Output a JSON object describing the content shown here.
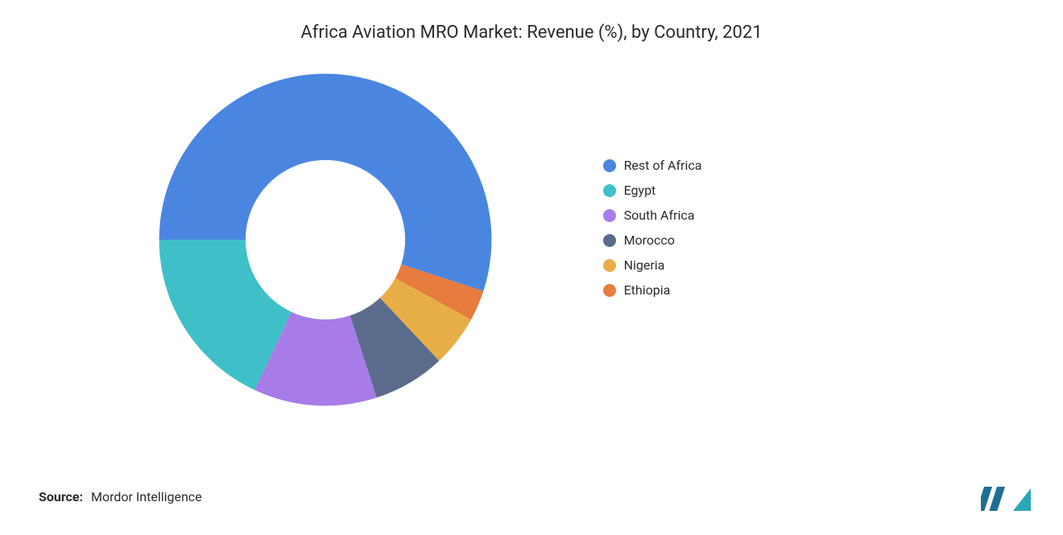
{
  "title": "Africa Aviation MRO Market: Revenue (%), by Country, 2021",
  "chart": {
    "type": "donut",
    "inner_radius_ratio": 0.48,
    "background_color": "#ffffff",
    "start_angle_deg": 180,
    "direction": "clockwise",
    "slices": [
      {
        "label": "Rest of Africa",
        "value": 55,
        "color": "#4a86e0"
      },
      {
        "label": "Ethiopia",
        "value": 3,
        "color": "#e77c3f"
      },
      {
        "label": "Nigeria",
        "value": 5,
        "color": "#e8ae47"
      },
      {
        "label": "Morocco",
        "value": 7,
        "color": "#5a6b8c"
      },
      {
        "label": "South Africa",
        "value": 12,
        "color": "#a77ce8"
      },
      {
        "label": "Egypt",
        "value": 18,
        "color": "#3fc0c8"
      }
    ],
    "title_fontsize": 22,
    "title_color": "#2b2b2b"
  },
  "legend": {
    "position": "right",
    "swatch_shape": "circle",
    "swatch_size": 16,
    "label_fontsize": 16,
    "label_color": "#2b2b2b",
    "items": [
      {
        "label": "Rest of Africa",
        "color": "#4a86e0"
      },
      {
        "label": "Egypt",
        "color": "#3fc0c8"
      },
      {
        "label": "South Africa",
        "color": "#a77ce8"
      },
      {
        "label": "Morocco",
        "color": "#5a6b8c"
      },
      {
        "label": "Nigeria",
        "color": "#e8ae47"
      },
      {
        "label": "Ethiopia",
        "color": "#e77c3f"
      }
    ]
  },
  "source": {
    "label": "Source:",
    "text": "Mordor Intelligence"
  },
  "logo": {
    "bar_color": "#1f6e93",
    "tri_color": "#2aa8b8"
  }
}
